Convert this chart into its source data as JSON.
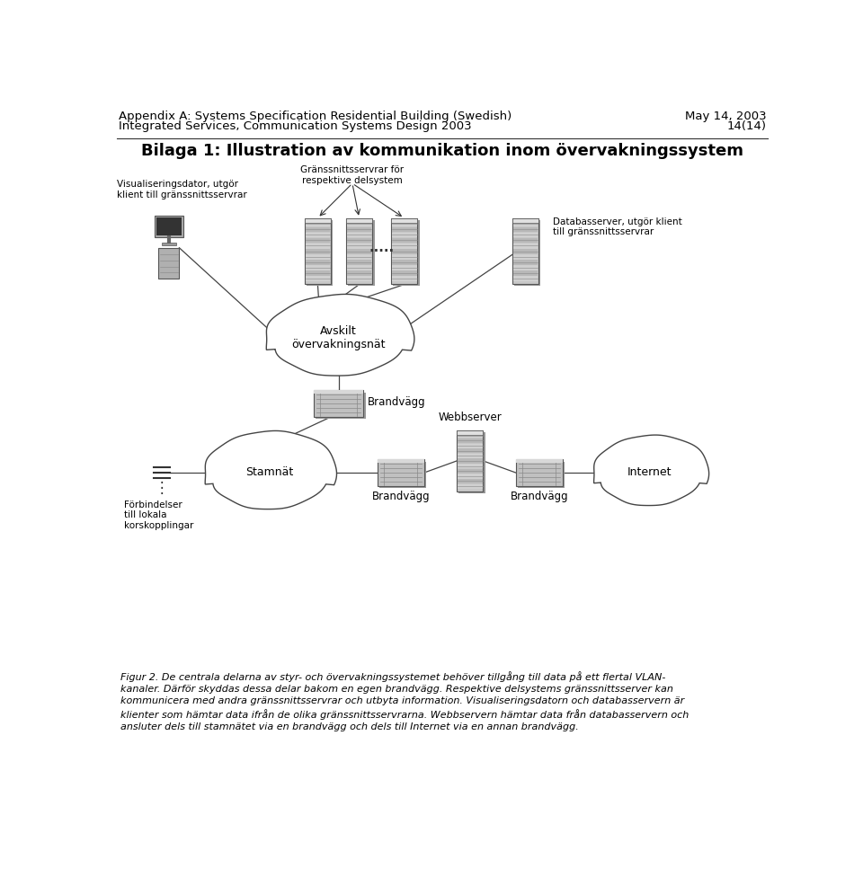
{
  "header_left_line1": "Appendix A: Systems Specification Residential Building (Swedish)",
  "header_left_line2": "Integrated Services, Communication Systems Design 2003",
  "header_right_line1": "May 14, 2003",
  "header_right_line2": "14(14)",
  "title": "Bilaga 1: Illustration av kommunikation inom övervakningssystem",
  "bg_color": "#ffffff",
  "header_font_size": 9.5,
  "title_font_size": 13,
  "caption_font_size": 8,
  "caption_text": "Figur 2. De centrala delarna av styr- och övervakningssystemet behöver tillgång till data på ett flertal VLAN-\nkanaler. Därför skyddas dessa delar bakom en egen brandvägg. Respektive delsystems gränssnittsserver kan\nkommunicera med andra gränssnittsservrar och utbyta information. Visualiseringsdatorn och databasservern är\nklienter som hämtar data ifrån de olika gränssnittsservrarna. Webbservern hämtar data från databasservern och\nansluter dels till stamnätet via en brandvägg och dels till Internet via en annan brandvägg.",
  "vis_label": "Visualiseringsdator, utgör\nklient till gränssnittsservrar",
  "grans_label": "Gränssnittsservrar för\nrespektive delsystem",
  "db_label": "Databasserver, utgör klient\ntill gränssnittsservrar",
  "cloud1_label": "Avskilt\növervakningsnät",
  "bv1_label": "Brandvägg",
  "cloud2_label": "Stamnät",
  "bv2_label": "Brandvägg",
  "bv3_label": "Brandvägg",
  "webb_label": "Webbserver",
  "internet_label": "Internet",
  "forbind_label": "Förbindelser\ntill lokala\nkorskopplingar",
  "stamnät_label": "Stamnät"
}
